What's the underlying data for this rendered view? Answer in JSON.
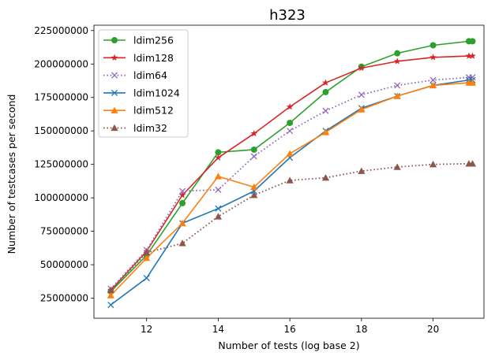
{
  "chart_data": {
    "type": "line",
    "title": "h323",
    "xlabel": "Number of tests (log base 2)",
    "ylabel": "Number of testcases per second",
    "xlim": [
      10.53,
      21.42
    ],
    "ylim": [
      10000000,
      229000000
    ],
    "x_ticks": [
      12,
      14,
      16,
      18,
      20
    ],
    "x_tick_labels": [
      "12",
      "14",
      "16",
      "18",
      "20"
    ],
    "y_ticks": [
      25000000,
      50000000,
      75000000,
      100000000,
      125000000,
      150000000,
      175000000,
      200000000,
      225000000
    ],
    "y_tick_labels": [
      "25000000",
      "50000000",
      "75000000",
      "100000000",
      "125000000",
      "150000000",
      "175000000",
      "200000000",
      "225000000"
    ],
    "grid": false,
    "legend_position": "top-left",
    "x": [
      11,
      12,
      13,
      14,
      15,
      16,
      17,
      18,
      19,
      20,
      21,
      21.1
    ],
    "series": [
      {
        "name": "ldim256",
        "color": "#2ca02c",
        "marker": "circle",
        "linestyle": "solid",
        "values": [
          30000000,
          57000000,
          96000000,
          134000000,
          136000000,
          156000000,
          179000000,
          198000000,
          208000000,
          214000000,
          217000000,
          217000000
        ]
      },
      {
        "name": "ldim128",
        "color": "#d62728",
        "marker": "star",
        "linestyle": "solid",
        "values": [
          31000000,
          60000000,
          102000000,
          130000000,
          148000000,
          168000000,
          186000000,
          197000000,
          202000000,
          205000000,
          206000000,
          206000000
        ]
      },
      {
        "name": "ldim64",
        "color": "#9467bd",
        "marker": "x",
        "linestyle": "dotted",
        "values": [
          32000000,
          61000000,
          105000000,
          106000000,
          131000000,
          150000000,
          165000000,
          177000000,
          184000000,
          188000000,
          190000000,
          190000000
        ]
      },
      {
        "name": "ldim1024",
        "color": "#1f77b4",
        "marker": "x",
        "linestyle": "solid",
        "values": [
          20000000,
          40000000,
          81000000,
          92000000,
          105000000,
          130000000,
          150000000,
          167000000,
          176000000,
          184000000,
          188000000,
          188000000
        ]
      },
      {
        "name": "ldim512",
        "color": "#ff7f0e",
        "marker": "triangle",
        "linestyle": "solid",
        "values": [
          27000000,
          55000000,
          81000000,
          116000000,
          108000000,
          133000000,
          149000000,
          166000000,
          176000000,
          184000000,
          186000000,
          186000000
        ]
      },
      {
        "name": "ldim32",
        "color": "#8c564b",
        "marker": "triangle",
        "linestyle": "dotted",
        "values": [
          31000000,
          59000000,
          66000000,
          86000000,
          102000000,
          113000000,
          115000000,
          120000000,
          123000000,
          125000000,
          125500000,
          125500000
        ]
      }
    ]
  }
}
